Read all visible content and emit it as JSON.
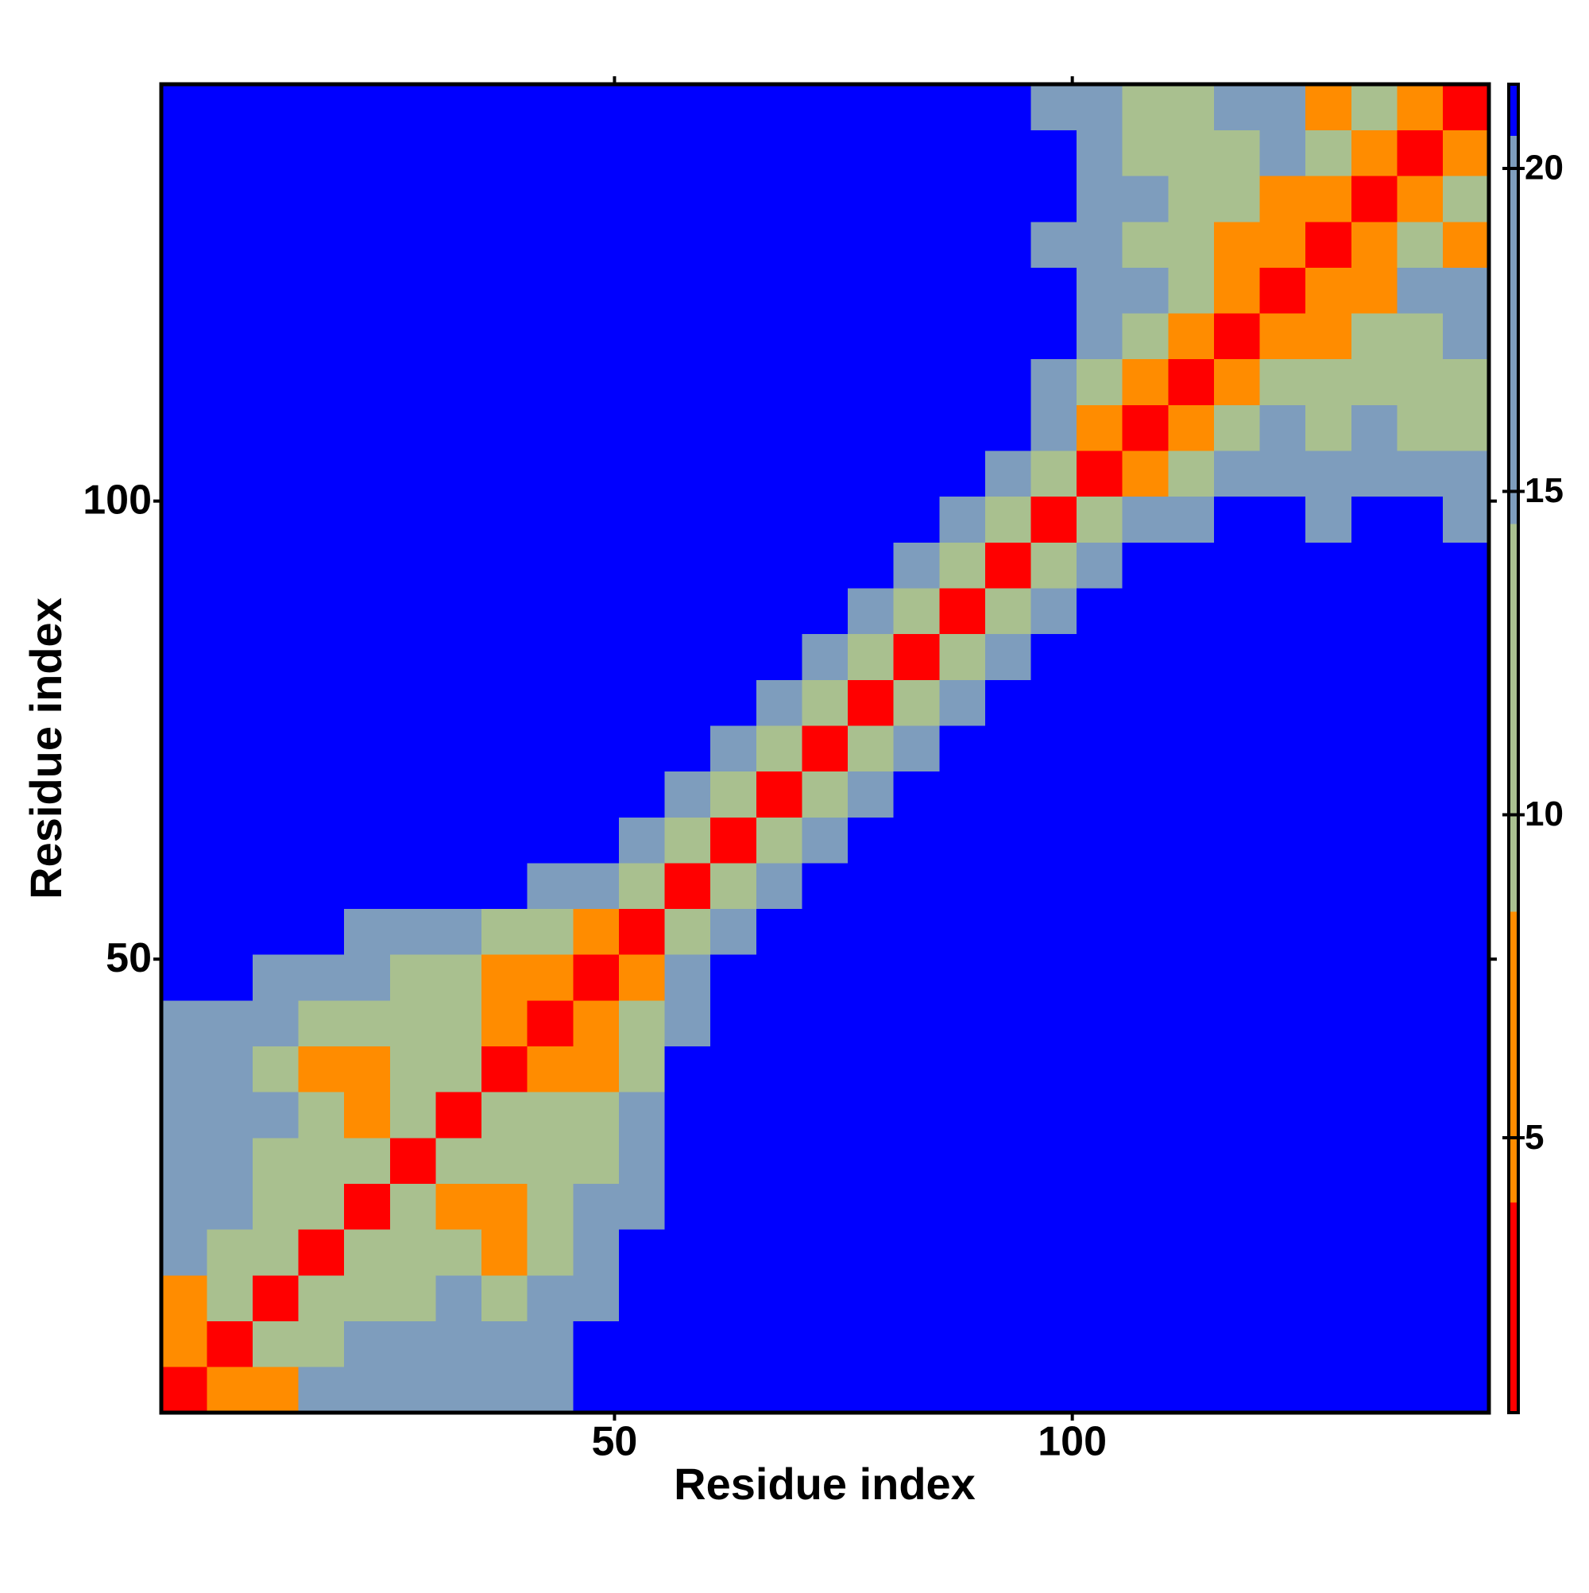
{
  "chart_data": {
    "type": "heatmap",
    "x_label": "Residue index",
    "y_label": "Residue index",
    "xlim": [
      0.5,
      145.5
    ],
    "ylim": [
      0.5,
      145.5
    ],
    "xticks": [
      50,
      100
    ],
    "yticks": [
      50,
      100
    ],
    "xbins": [
      0.5,
      5.5,
      10.5,
      15.5,
      20.5,
      25.5,
      30.5,
      35.5,
      40.5,
      45.5,
      50.5,
      55.5,
      60.5,
      65.5,
      70.5,
      75.5,
      80.5,
      85.5,
      90.5,
      95.5,
      100.5,
      105.5,
      110.5,
      115.5,
      120.5,
      125.5,
      130.5,
      135.5,
      140.5,
      145.5
    ],
    "ybins": [
      0.5,
      5.5,
      10.5,
      15.5,
      20.5,
      25.5,
      30.5,
      35.5,
      40.5,
      45.5,
      50.5,
      55.5,
      60.5,
      65.5,
      70.5,
      75.5,
      80.5,
      85.5,
      90.5,
      95.5,
      100.5,
      105.5,
      110.5,
      115.5,
      120.5,
      125.5,
      130.5,
      135.5,
      140.5,
      145.5
    ],
    "values": [
      [
        3,
        8,
        8,
        15,
        17,
        17,
        19,
        16,
        18,
        21,
        21,
        21,
        21,
        21,
        21,
        21,
        21,
        21,
        21,
        21,
        21,
        21,
        21,
        21,
        21,
        21,
        21,
        21,
        21
      ],
      [
        8,
        3,
        9,
        12,
        16,
        15,
        17,
        15,
        17,
        21,
        21,
        21,
        21,
        21,
        21,
        21,
        21,
        21,
        21,
        21,
        21,
        21,
        21,
        21,
        21,
        21,
        21,
        21,
        21
      ],
      [
        8,
        9,
        3,
        9,
        12,
        14,
        15,
        12,
        16,
        20,
        21,
        21,
        21,
        21,
        21,
        21,
        21,
        21,
        21,
        21,
        21,
        21,
        21,
        21,
        21,
        21,
        21,
        21,
        21
      ],
      [
        15,
        12,
        9,
        3,
        9,
        11,
        12,
        8,
        12,
        17,
        21,
        21,
        21,
        21,
        21,
        21,
        21,
        21,
        21,
        21,
        21,
        21,
        21,
        21,
        21,
        21,
        21,
        21,
        21
      ],
      [
        17,
        16,
        12,
        9,
        3,
        9,
        8,
        8,
        12,
        15,
        20,
        21,
        21,
        21,
        21,
        21,
        21,
        21,
        21,
        21,
        21,
        21,
        21,
        21,
        21,
        21,
        21,
        21,
        21
      ],
      [
        17,
        15,
        14,
        11,
        9,
        3,
        9,
        9,
        9,
        14,
        18,
        21,
        21,
        21,
        21,
        21,
        21,
        21,
        21,
        21,
        21,
        21,
        21,
        21,
        21,
        21,
        21,
        21,
        21
      ],
      [
        19,
        17,
        15,
        12,
        8,
        9,
        3,
        9,
        10,
        14,
        17,
        21,
        21,
        21,
        21,
        21,
        21,
        21,
        21,
        21,
        21,
        21,
        21,
        21,
        21,
        21,
        21,
        21,
        21
      ],
      [
        16,
        15,
        12,
        8,
        8,
        9,
        9,
        3,
        7,
        7,
        12,
        21,
        21,
        21,
        21,
        21,
        21,
        21,
        21,
        21,
        21,
        21,
        21,
        21,
        21,
        21,
        21,
        21,
        21
      ],
      [
        18,
        17,
        16,
        12,
        12,
        9,
        10,
        7,
        3,
        7,
        9,
        20,
        21,
        21,
        21,
        21,
        21,
        21,
        21,
        21,
        21,
        21,
        21,
        21,
        21,
        21,
        21,
        21,
        21
      ],
      [
        21,
        21,
        20,
        17,
        15,
        14,
        14,
        7,
        7,
        3,
        8,
        17,
        21,
        21,
        21,
        21,
        21,
        21,
        21,
        21,
        21,
        21,
        21,
        21,
        21,
        21,
        21,
        21,
        21
      ],
      [
        21,
        21,
        21,
        21,
        20,
        18,
        17,
        12,
        9,
        8,
        3,
        9,
        16,
        21,
        21,
        21,
        21,
        21,
        21,
        21,
        21,
        21,
        21,
        21,
        21,
        21,
        21,
        21,
        21
      ],
      [
        21,
        21,
        21,
        21,
        21,
        21,
        21,
        21,
        20,
        17,
        9,
        3,
        9,
        16,
        21,
        21,
        21,
        21,
        21,
        21,
        21,
        21,
        21,
        21,
        21,
        21,
        21,
        21,
        21
      ],
      [
        21,
        21,
        21,
        21,
        21,
        21,
        21,
        21,
        21,
        21,
        16,
        9,
        3,
        9,
        16,
        21,
        21,
        21,
        21,
        21,
        21,
        21,
        21,
        21,
        21,
        21,
        21,
        21,
        21
      ],
      [
        21,
        21,
        21,
        21,
        21,
        21,
        21,
        21,
        21,
        21,
        21,
        16,
        9,
        3,
        9,
        16,
        21,
        21,
        21,
        21,
        21,
        21,
        21,
        21,
        21,
        21,
        21,
        21,
        21
      ],
      [
        21,
        21,
        21,
        21,
        21,
        21,
        21,
        21,
        21,
        21,
        21,
        21,
        16,
        9,
        3,
        9,
        16,
        21,
        21,
        21,
        21,
        21,
        21,
        21,
        21,
        21,
        21,
        21,
        21
      ],
      [
        21,
        21,
        21,
        21,
        21,
        21,
        21,
        21,
        21,
        21,
        21,
        21,
        21,
        16,
        9,
        3,
        9,
        16,
        21,
        21,
        21,
        21,
        21,
        21,
        21,
        21,
        21,
        21,
        21
      ],
      [
        21,
        21,
        21,
        21,
        21,
        21,
        21,
        21,
        21,
        21,
        21,
        21,
        21,
        21,
        16,
        9,
        3,
        9,
        16,
        21,
        21,
        21,
        21,
        21,
        21,
        21,
        21,
        21,
        21
      ],
      [
        21,
        21,
        21,
        21,
        21,
        21,
        21,
        21,
        21,
        21,
        21,
        21,
        21,
        21,
        21,
        16,
        9,
        3,
        9,
        16,
        21,
        21,
        21,
        21,
        21,
        21,
        21,
        21,
        21
      ],
      [
        21,
        21,
        21,
        21,
        21,
        21,
        21,
        21,
        21,
        21,
        21,
        21,
        21,
        21,
        21,
        21,
        16,
        9,
        3,
        9,
        16,
        21,
        21,
        21,
        21,
        21,
        21,
        21,
        21
      ],
      [
        21,
        21,
        21,
        21,
        21,
        21,
        21,
        21,
        21,
        21,
        21,
        21,
        21,
        21,
        21,
        21,
        21,
        16,
        9,
        3,
        9,
        16,
        20,
        21,
        21,
        19,
        21,
        21,
        20
      ],
      [
        21,
        21,
        21,
        21,
        21,
        21,
        21,
        21,
        21,
        21,
        21,
        21,
        21,
        21,
        21,
        21,
        21,
        21,
        16,
        9,
        3,
        7,
        12,
        16,
        18,
        16,
        18,
        17,
        17
      ],
      [
        21,
        21,
        21,
        21,
        21,
        21,
        21,
        21,
        21,
        21,
        21,
        21,
        21,
        21,
        21,
        21,
        21,
        21,
        21,
        16,
        7,
        3,
        7,
        12,
        16,
        14,
        15,
        14,
        14
      ],
      [
        21,
        21,
        21,
        21,
        21,
        21,
        21,
        21,
        21,
        21,
        21,
        21,
        21,
        21,
        21,
        21,
        21,
        21,
        21,
        20,
        12,
        7,
        3,
        7,
        12,
        13,
        12,
        13,
        14
      ],
      [
        21,
        21,
        21,
        21,
        21,
        21,
        21,
        21,
        21,
        21,
        21,
        21,
        21,
        21,
        21,
        21,
        21,
        21,
        21,
        21,
        16,
        12,
        7,
        3,
        7,
        7,
        9,
        13,
        15
      ],
      [
        21,
        21,
        21,
        21,
        21,
        21,
        21,
        21,
        21,
        21,
        21,
        21,
        21,
        21,
        21,
        21,
        21,
        21,
        21,
        21,
        18,
        16,
        12,
        7,
        3,
        7,
        7,
        20,
        19
      ],
      [
        21,
        21,
        21,
        21,
        21,
        21,
        21,
        21,
        21,
        21,
        21,
        21,
        21,
        21,
        21,
        21,
        21,
        21,
        21,
        19,
        16,
        14,
        13,
        7,
        7,
        3,
        8,
        10,
        8
      ],
      [
        21,
        21,
        21,
        21,
        21,
        21,
        21,
        21,
        21,
        21,
        21,
        21,
        21,
        21,
        21,
        21,
        21,
        21,
        21,
        21,
        18,
        15,
        12,
        9,
        7,
        8,
        3,
        8,
        9
      ],
      [
        21,
        21,
        21,
        21,
        21,
        21,
        21,
        21,
        21,
        21,
        21,
        21,
        21,
        21,
        21,
        21,
        21,
        21,
        21,
        21,
        17,
        14,
        13,
        13,
        20,
        10,
        8,
        3,
        8
      ],
      [
        21,
        21,
        21,
        21,
        21,
        21,
        21,
        21,
        21,
        21,
        21,
        21,
        21,
        21,
        21,
        21,
        21,
        21,
        21,
        20,
        17,
        14,
        14,
        15,
        19,
        8,
        9,
        8,
        3
      ]
    ],
    "colorbar": {
      "lim": [
        0.75,
        21.3
      ],
      "ticks": [
        5,
        10,
        15,
        20
      ],
      "breaks": [
        4,
        8.5,
        14.5,
        20.5
      ],
      "colors": [
        "#ff0000",
        "#ff8c00",
        "#a9c08f",
        "#7e9dbd",
        "#0000ff"
      ]
    }
  }
}
